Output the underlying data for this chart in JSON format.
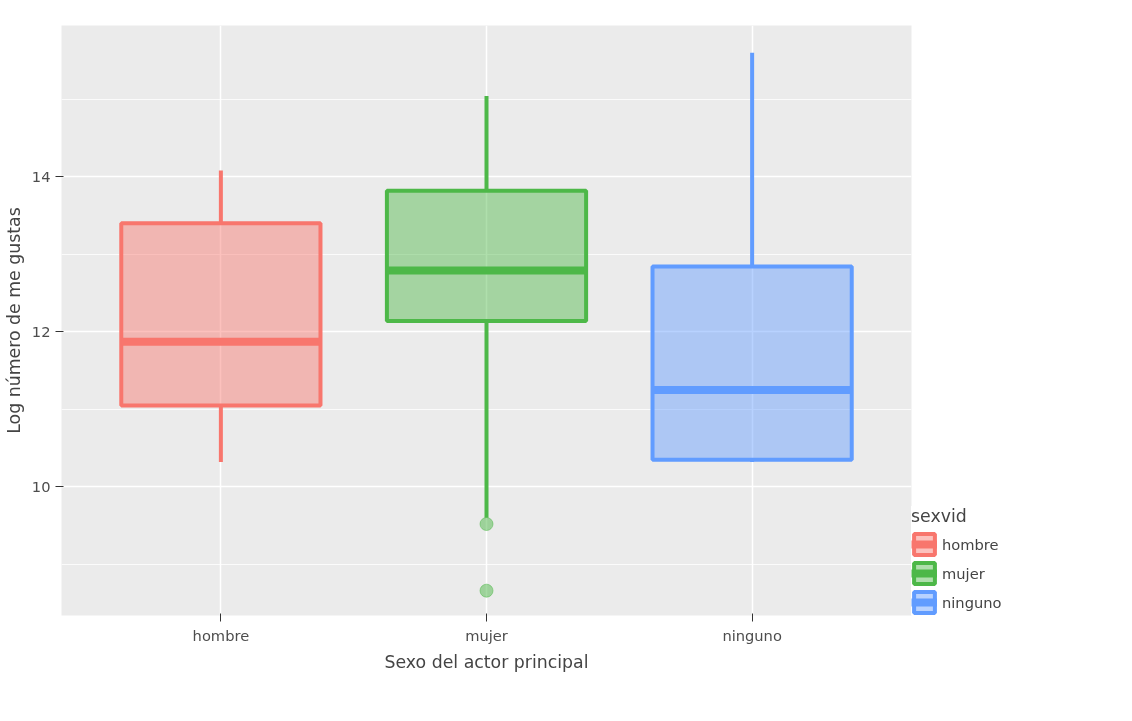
{
  "chart_data": {
    "type": "box",
    "xlabel": "Sexo del actor principal",
    "ylabel": "Log número de me gustas",
    "legend_title": "sexvid",
    "categories": [
      "hombre",
      "mujer",
      "ninguno"
    ],
    "series": [
      {
        "name": "hombre",
        "color": "#f8766d",
        "x": [
          "hombre"
        ],
        "boxes": [
          {
            "low": 10.32,
            "q1": 11.05,
            "median": 11.87,
            "q3": 13.4,
            "high": 14.08
          }
        ]
      },
      {
        "name": "mujer",
        "color": "#4db848",
        "x": [
          "mujer"
        ],
        "boxes": [
          {
            "low": 9.6,
            "q1": 12.14,
            "median": 12.79,
            "q3": 13.82,
            "high": 15.04,
            "outliers": [
              9.52,
              8.66
            ]
          }
        ]
      },
      {
        "name": "ninguno",
        "color": "#619cff",
        "x": [
          "ninguno"
        ],
        "boxes": [
          {
            "low": 10.32,
            "q1": 10.35,
            "median": 11.25,
            "q3": 12.84,
            "high": 15.6
          }
        ]
      }
    ],
    "ylim": [
      8.34,
      15.95
    ],
    "yticks": [
      10,
      12,
      14
    ],
    "grid": true,
    "legend": "right"
  }
}
